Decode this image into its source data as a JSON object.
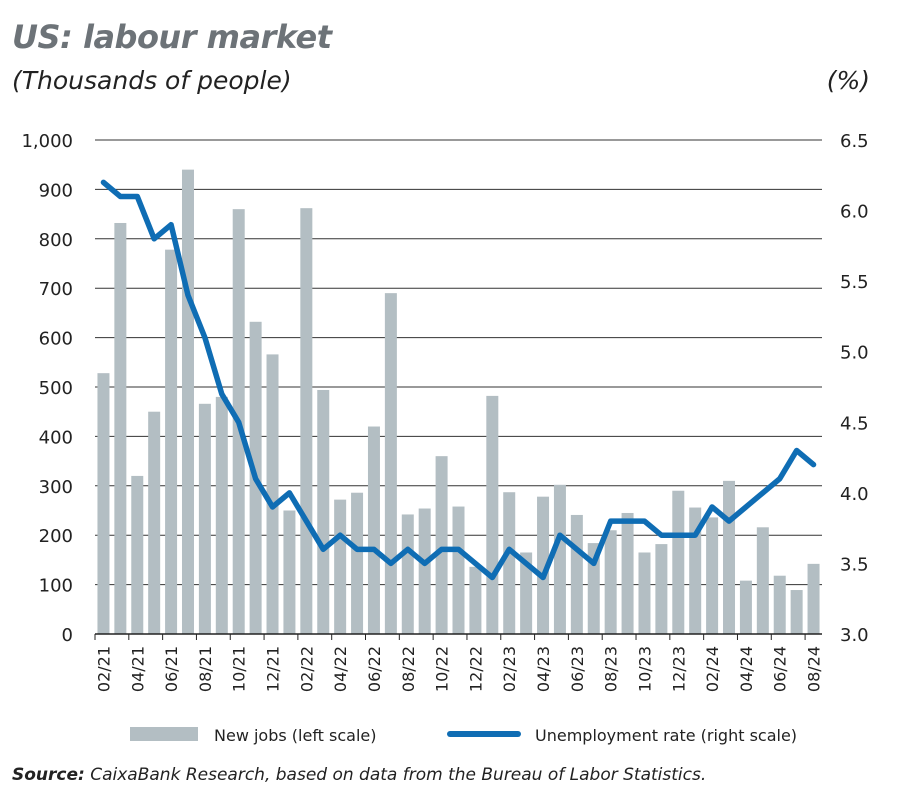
{
  "chart_data": {
    "type": "bar+line",
    "title": "US: labour market",
    "subtitle": "(Thousands of people)",
    "right_unit": "(%)",
    "categories": [
      "02/21",
      "03/21",
      "04/21",
      "05/21",
      "06/21",
      "07/21",
      "08/21",
      "09/21",
      "10/21",
      "11/21",
      "12/21",
      "01/22",
      "02/22",
      "03/22",
      "04/22",
      "05/22",
      "06/22",
      "07/22",
      "08/22",
      "09/22",
      "10/22",
      "11/22",
      "12/22",
      "01/23",
      "02/23",
      "03/23",
      "04/23",
      "05/23",
      "06/23",
      "07/23",
      "08/23",
      "09/23",
      "10/23",
      "11/23",
      "12/23",
      "01/24",
      "02/24",
      "03/24",
      "04/24",
      "05/24",
      "06/24",
      "07/24",
      "08/24"
    ],
    "tick_labels": [
      "02/21",
      "04/21",
      "06/21",
      "08/21",
      "10/21",
      "12/21",
      "02/22",
      "04/22",
      "06/22",
      "08/22",
      "10/22",
      "12/22",
      "02/23",
      "04/23",
      "06/23",
      "08/23",
      "10/23",
      "12/23",
      "02/24",
      "04/24",
      "06/24",
      "08/24"
    ],
    "series": [
      {
        "name": "New jobs (left scale)",
        "type": "bar",
        "axis": "left",
        "color": "#b3bec3",
        "values": [
          528,
          832,
          320,
          450,
          778,
          940,
          466,
          480,
          860,
          632,
          566,
          250,
          862,
          494,
          272,
          286,
          420,
          690,
          242,
          254,
          360,
          258,
          136,
          482,
          287,
          165,
          278,
          302,
          241,
          184,
          210,
          245,
          165,
          182,
          290,
          256,
          236,
          310,
          108,
          216,
          118,
          89,
          142
        ]
      },
      {
        "name": "Unemployment rate (right scale)",
        "type": "line",
        "axis": "right",
        "color": "#0f6db4",
        "values": [
          6.2,
          6.1,
          6.1,
          5.8,
          5.9,
          5.4,
          5.1,
          4.7,
          4.5,
          4.1,
          3.9,
          4.0,
          3.8,
          3.6,
          3.7,
          3.6,
          3.6,
          3.5,
          3.6,
          3.5,
          3.6,
          3.6,
          3.5,
          3.4,
          3.6,
          3.5,
          3.4,
          3.7,
          3.6,
          3.5,
          3.8,
          3.8,
          3.8,
          3.7,
          3.7,
          3.7,
          3.9,
          3.8,
          3.9,
          4.0,
          4.1,
          4.3,
          4.2
        ]
      }
    ],
    "left_axis": {
      "ylim": [
        0,
        1000
      ],
      "ticks": [
        "0",
        "100",
        "200",
        "300",
        "400",
        "500",
        "600",
        "700",
        "800",
        "900",
        "1,000"
      ]
    },
    "right_axis": {
      "ylim": [
        3.0,
        6.5
      ],
      "ticks": [
        "3.0",
        "3.5",
        "4.0",
        "4.5",
        "5.0",
        "5.5",
        "6.0",
        "6.5"
      ]
    },
    "grid": true,
    "legend_position": "bottom",
    "source_label": "Source:",
    "source_text": "CaixaBank Research, based on data from the Bureau of Labor Statistics."
  }
}
